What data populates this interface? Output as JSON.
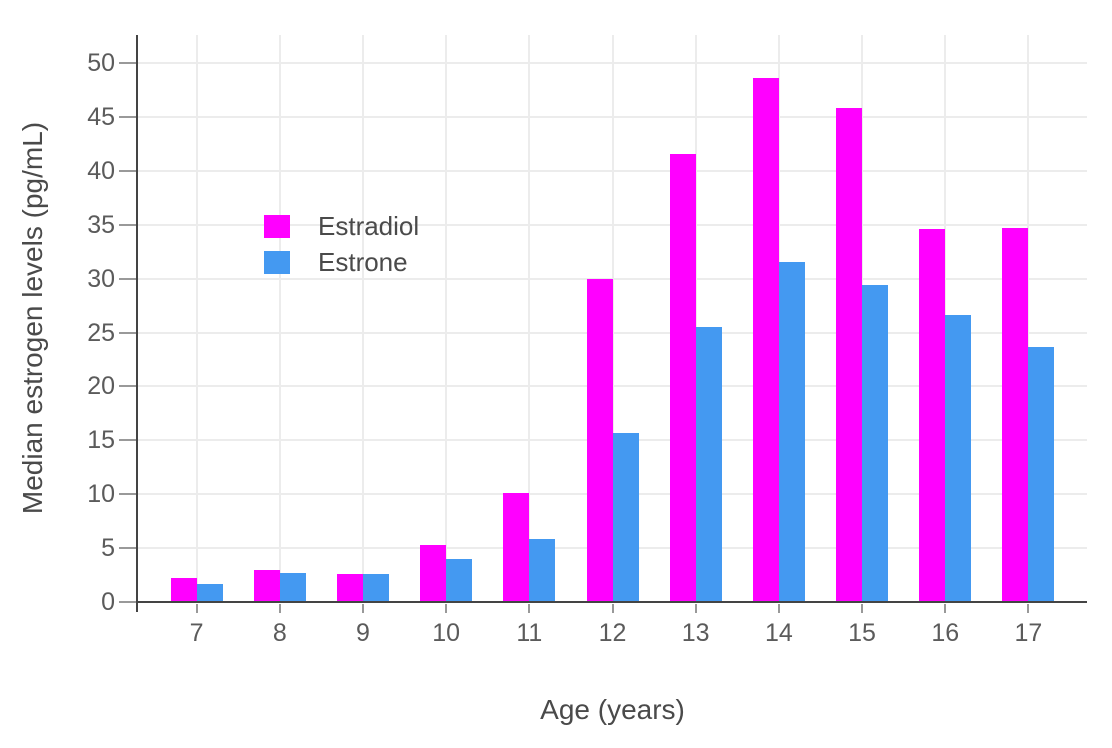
{
  "chart_data": {
    "type": "bar",
    "title": "",
    "xlabel": "Age (years)",
    "ylabel": "Median estrogen levels (pg/mL)",
    "categories": [
      7,
      8,
      9,
      10,
      11,
      12,
      13,
      14,
      15,
      16,
      17
    ],
    "series": [
      {
        "name": "Estradiol",
        "color": "#FF00FF",
        "values": [
          2.2,
          3.0,
          2.6,
          5.3,
          10.1,
          30.0,
          41.6,
          48.6,
          45.8,
          34.6,
          34.7
        ]
      },
      {
        "name": "Estrone",
        "color": "#4499F1",
        "values": [
          1.7,
          2.7,
          2.6,
          4.0,
          5.8,
          15.7,
          25.5,
          31.5,
          29.4,
          26.6,
          23.7
        ]
      }
    ],
    "yticks": [
      0,
      5,
      10,
      15,
      20,
      25,
      30,
      35,
      40,
      45,
      50
    ],
    "ylim": [
      0,
      52.6
    ],
    "grid": true,
    "legend_position": "inside-top-left"
  },
  "style": {
    "background": "#FFFFFF",
    "grid_color": "#ECECEC",
    "axis_color": "#444444",
    "tick_mark_color": "#999999",
    "tick_label_color": "#5B5B5B",
    "title_color": "#4A4A4A"
  }
}
